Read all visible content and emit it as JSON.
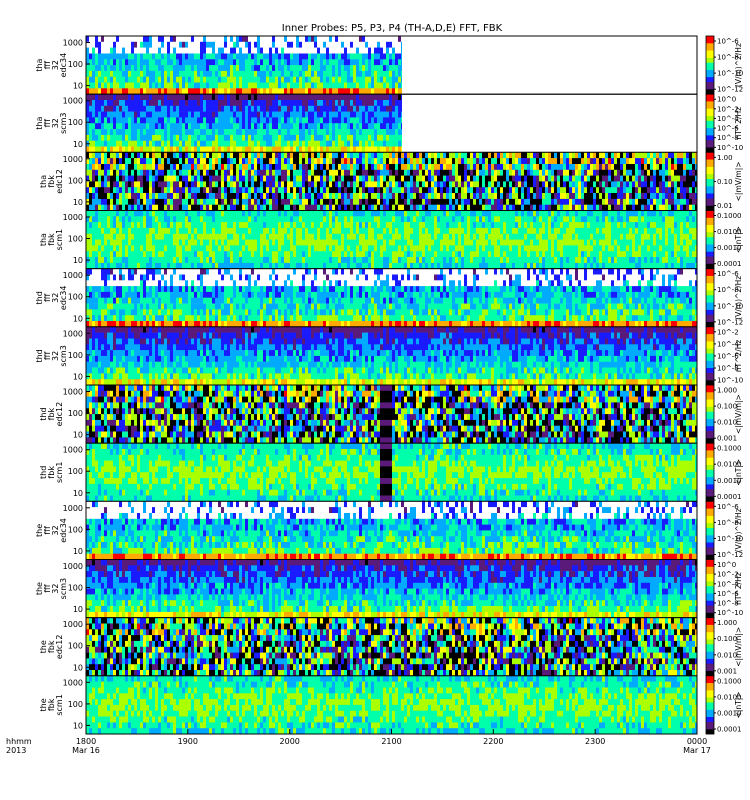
{
  "chart_data": {
    "type": "heatmap",
    "title": "Inner Probes: P5, P3, P4 (TH-A,D,E) FFT, FBK",
    "x_axis": {
      "label_line1": "hhmm",
      "label_line2": "2013",
      "ticks": [
        {
          "value": "1800",
          "sub": "Mar 16"
        },
        {
          "value": "1900",
          "sub": ""
        },
        {
          "value": "2000",
          "sub": ""
        },
        {
          "value": "2100",
          "sub": ""
        },
        {
          "value": "2200",
          "sub": ""
        },
        {
          "value": "2300",
          "sub": ""
        },
        {
          "value": "0000",
          "sub": "Mar 17"
        }
      ],
      "range_hours": [
        18,
        24
      ]
    },
    "y_scale": "log",
    "colormap": [
      "#000000",
      "#5a1a7a",
      "#1a1aff",
      "#00aaff",
      "#00ffaa",
      "#aaff00",
      "#ffff00",
      "#ffaa00",
      "#ff0000"
    ],
    "panels": [
      {
        "id": "tha-fff32-edc34",
        "ylabel": [
          "tha",
          "fff",
          "32",
          "edc34"
        ],
        "yticks": [
          "1000",
          "100",
          "10"
        ],
        "cbar_ticks": [
          "10^-6",
          "10^-8",
          "10^-10",
          "10^-12"
        ],
        "cbar_label": "(V/m)^2/Hz",
        "data_end_hour": 21.1,
        "style": "sparse"
      },
      {
        "id": "tha-fff32-scm3",
        "ylabel": [
          "tha",
          "fff",
          "32",
          "scm3"
        ],
        "yticks": [
          "1000",
          "100",
          "10"
        ],
        "cbar_ticks": [
          "10^0",
          "10^-2",
          "10^-4",
          "10^-6",
          "10^-8",
          "10^-10"
        ],
        "cbar_label": "nT^2/Hz",
        "data_end_hour": 21.1,
        "style": "dense"
      },
      {
        "id": "tha-fbk-edc12",
        "ylabel": [
          "tha",
          "fbk",
          "edc12"
        ],
        "yticks": [
          "1000",
          "100",
          "10"
        ],
        "cbar_ticks": [
          "1.00",
          "0.10",
          "0.01"
        ],
        "cbar_label": "<|mV/m|>",
        "data_end_hour": 24,
        "style": "fbk"
      },
      {
        "id": "tha-fbk-scm1",
        "ylabel": [
          "tha",
          "fbk",
          "scm1"
        ],
        "yticks": [
          "1000",
          "100",
          "10"
        ],
        "cbar_ticks": [
          "0.1000",
          "0.0100",
          "0.0010",
          "0.0001"
        ],
        "cbar_label": "<|nT|>",
        "data_end_hour": 24,
        "style": "fbk-soft"
      },
      {
        "id": "thd-fff32-edc34",
        "ylabel": [
          "thd",
          "fff",
          "32",
          "edc34"
        ],
        "yticks": [
          "1000",
          "100",
          "10"
        ],
        "cbar_ticks": [
          "10^-6",
          "10^-8",
          "10^-10",
          "10^-12"
        ],
        "cbar_label": "(V/m)^2/Hz",
        "data_end_hour": 24,
        "style": "sparse"
      },
      {
        "id": "thd-fff32-scm3",
        "ylabel": [
          "thd",
          "fff",
          "32",
          "scm3"
        ],
        "yticks": [
          "1000",
          "100",
          "10"
        ],
        "cbar_ticks": [
          "10^-2",
          "10^-4",
          "10^-6",
          "10^-8",
          "10^-10"
        ],
        "cbar_label": "nT^2/Hz",
        "data_end_hour": 24,
        "style": "dense"
      },
      {
        "id": "thd-fbk-edc12",
        "ylabel": [
          "thd",
          "fbk",
          "edc12"
        ],
        "yticks": [
          "1000",
          "100",
          "10"
        ],
        "cbar_ticks": [
          "1.000",
          "0.100",
          "0.010",
          "0.001"
        ],
        "cbar_label": "<|mV/m|>",
        "data_end_hour": 24,
        "style": "fbk",
        "gap_hours": [
          20.88,
          20.98
        ]
      },
      {
        "id": "thd-fbk-scm1",
        "ylabel": [
          "thd",
          "fbk",
          "scm1"
        ],
        "yticks": [
          "1000",
          "100",
          "10"
        ],
        "cbar_ticks": [
          "0.1000",
          "0.0100",
          "0.0010",
          "0.0001"
        ],
        "cbar_label": "<|nT|>",
        "data_end_hour": 24,
        "style": "fbk-soft",
        "gap_hours": [
          20.88,
          20.98
        ]
      },
      {
        "id": "the-fff32-edc34",
        "ylabel": [
          "the",
          "fff",
          "32",
          "edc34"
        ],
        "yticks": [
          "1000",
          "100",
          "10"
        ],
        "cbar_ticks": [
          "10^-6",
          "10^-8",
          "10^-10",
          "10^-12"
        ],
        "cbar_label": "(V/m)^2/Hz",
        "data_end_hour": 24,
        "style": "sparse"
      },
      {
        "id": "the-fff32-scm3",
        "ylabel": [
          "the",
          "fff",
          "32",
          "scm3"
        ],
        "yticks": [
          "1000",
          "100",
          "10"
        ],
        "cbar_ticks": [
          "10^0",
          "10^-2",
          "10^-4",
          "10^-6",
          "10^-8",
          "10^-10"
        ],
        "cbar_label": "nT^2/Hz",
        "data_end_hour": 24,
        "style": "dense"
      },
      {
        "id": "the-fbk-edc12",
        "ylabel": [
          "the",
          "fbk",
          "edc12"
        ],
        "yticks": [
          "1000",
          "100",
          "10"
        ],
        "cbar_ticks": [
          "1.000",
          "0.100",
          "0.010",
          "0.001"
        ],
        "cbar_label": "<|mV/m|>",
        "data_end_hour": 24,
        "style": "fbk"
      },
      {
        "id": "the-fbk-scm1",
        "ylabel": [
          "the",
          "fbk",
          "scm1"
        ],
        "yticks": [
          "1000",
          "100",
          "10"
        ],
        "cbar_ticks": [
          "0.1000",
          "0.0100",
          "0.0010",
          "0.0001"
        ],
        "cbar_label": "<|nT|>",
        "data_end_hour": 24,
        "style": "fbk-soft"
      }
    ]
  }
}
